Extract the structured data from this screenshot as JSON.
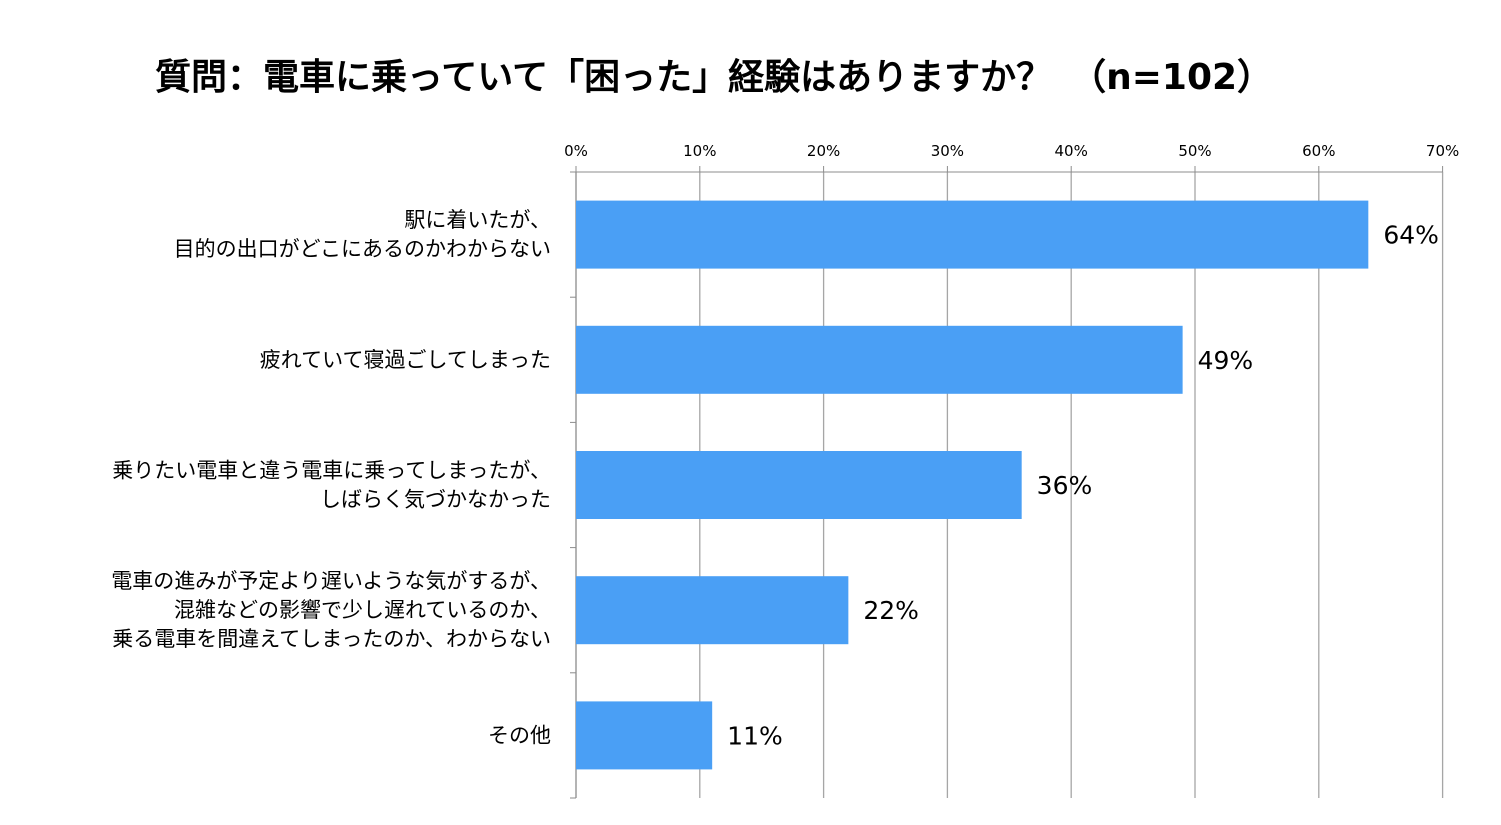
{
  "title": "質問：電車に乗っていて「困った」経験はありますか？　（n=102）",
  "chart_data": {
    "type": "bar",
    "orientation": "horizontal",
    "title": "質問：電車に乗っていて「困った」経験はありますか？　（n=102）",
    "xlabel": "",
    "ylabel": "",
    "xlim": [
      0,
      70
    ],
    "x_axis_position": "top",
    "x_ticks": [
      "0%",
      "10%",
      "20%",
      "30%",
      "40%",
      "50%",
      "60%",
      "70%"
    ],
    "grid": true,
    "bar_color": "#4A9FF5",
    "categories": [
      [
        "駅に着いたが、",
        "目的の出口がどこにあるのかわからない"
      ],
      [
        "疲れていて寝過ごしてしまった"
      ],
      [
        "乗りたい電車と違う電車に乗ってしまったが、",
        "しばらく気づかなかった"
      ],
      [
        "電車の進みが予定より遅いような気がするが、",
        "混雑などの影響で少し遅れているのか、",
        "乗る電車を間違えてしまったのか、わからない"
      ],
      [
        "その他"
      ]
    ],
    "values": [
      64,
      49,
      36,
      22,
      11
    ],
    "data_labels": [
      "64%",
      "49%",
      "36%",
      "22%",
      "11%"
    ]
  }
}
